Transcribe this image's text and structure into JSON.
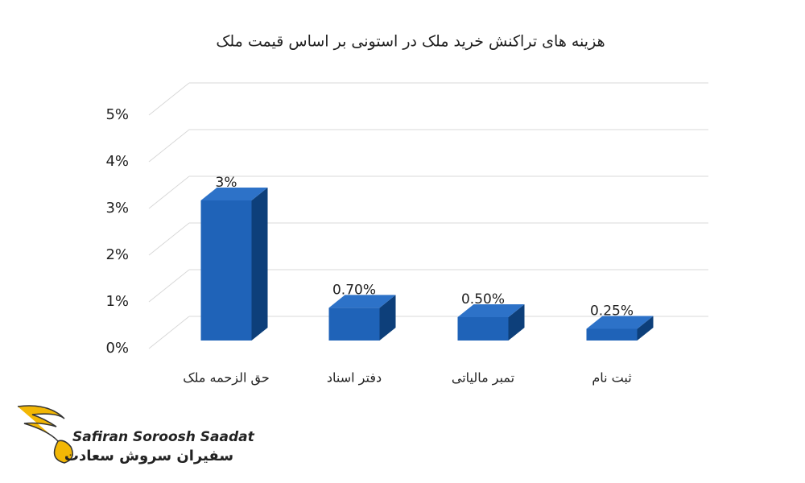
{
  "chart_data": {
    "type": "bar3d",
    "title": "هزینه های تراکنش خرید ملک در استونی بر اساس قیمت ملک",
    "categories": [
      "حق الزحمه ملک",
      "دفتر اسناد",
      "تمبر مالیاتی",
      "ثبت نام"
    ],
    "values": [
      3,
      0.7,
      0.5,
      0.25
    ],
    "value_labels": [
      "3%",
      "0.70%",
      "0.50%",
      "0.25%"
    ],
    "color": "#1f63b8",
    "ylim": [
      0,
      5
    ],
    "yticks": [
      {
        "value": 0,
        "label": "0%"
      },
      {
        "value": 1,
        "label": "1%"
      },
      {
        "value": 2,
        "label": "2%"
      },
      {
        "value": 3,
        "label": "3%"
      },
      {
        "value": 4,
        "label": "4%"
      },
      {
        "value": 5,
        "label": "5%"
      }
    ],
    "grid": true
  },
  "logo": {
    "latin": "Safiran Soroosh Saadat",
    "persian": "سفیران سروش سعادت"
  }
}
